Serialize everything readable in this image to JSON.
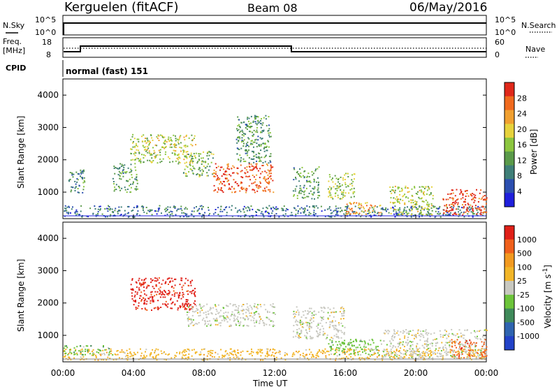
{
  "header": {
    "station": "Kerguelen (fitACF)",
    "beam": "Beam 08",
    "date": "06/May/2016"
  },
  "top_panels": {
    "nsky": {
      "label": "N.Sky",
      "ticks": [
        "10^5",
        "10^0"
      ],
      "right_label": "N.Search",
      "right_ticks": [
        "10^5",
        "10^0"
      ]
    },
    "freq": {
      "label_lines": [
        "Freq.",
        "[MHz]"
      ],
      "ticks": [
        "18",
        "8"
      ],
      "right_label": "Nave",
      "right_ticks": [
        "60",
        "0"
      ]
    },
    "cpid": {
      "label": "CPID",
      "text": "normal (fast) 151"
    }
  },
  "chart_data": [
    {
      "type": "heatmap",
      "name": "power",
      "ylabel": "Slant Range [km]",
      "xlabel": "",
      "yticks": [
        "4000",
        "3000",
        "2000",
        "1000"
      ],
      "ylim": [
        180,
        4500
      ],
      "xlim": [
        0,
        24
      ],
      "colorbar": {
        "label": "Power [dB]",
        "ticks": [
          "28",
          "24",
          "20",
          "16",
          "12",
          "8",
          "4"
        ],
        "colors": [
          "#1f1fdc",
          "#2c4fb0",
          "#3f7f78",
          "#5a9a4a",
          "#8cc63f",
          "#e6d23c",
          "#f0a030",
          "#f06a1e",
          "#e0281a"
        ]
      },
      "scatter_regions": [
        {
          "t0": 0.0,
          "t1": 24.0,
          "r0": 250,
          "r1": 600,
          "level": 0.22
        },
        {
          "t0": 0.3,
          "t1": 1.2,
          "r0": 1000,
          "r1": 1700,
          "level": 0.3
        },
        {
          "t0": 2.8,
          "t1": 4.2,
          "r0": 1000,
          "r1": 1900,
          "level": 0.35
        },
        {
          "t0": 3.8,
          "t1": 7.5,
          "r0": 1900,
          "r1": 2800,
          "level": 0.55
        },
        {
          "t0": 6.8,
          "t1": 8.5,
          "r0": 1500,
          "r1": 2300,
          "level": 0.45
        },
        {
          "t0": 8.5,
          "t1": 11.9,
          "r0": 1000,
          "r1": 1900,
          "level": 0.92
        },
        {
          "t0": 9.8,
          "t1": 11.8,
          "r0": 1900,
          "r1": 3400,
          "level": 0.35
        },
        {
          "t0": 13.0,
          "t1": 14.5,
          "r0": 800,
          "r1": 1800,
          "level": 0.35
        },
        {
          "t0": 15.0,
          "t1": 16.5,
          "r0": 800,
          "r1": 1600,
          "level": 0.5
        },
        {
          "t0": 16.0,
          "t1": 18.0,
          "r0": 300,
          "r1": 700,
          "level": 0.75
        },
        {
          "t0": 18.5,
          "t1": 21.0,
          "r0": 300,
          "r1": 1200,
          "level": 0.55
        },
        {
          "t0": 21.5,
          "t1": 24.0,
          "r0": 300,
          "r1": 1100,
          "level": 0.95
        }
      ]
    },
    {
      "type": "heatmap",
      "name": "velocity",
      "ylabel": "Slant Range [km]",
      "xlabel": "Time UT",
      "yticks": [
        "4000",
        "3000",
        "2000",
        "1000"
      ],
      "xticks": [
        "00:00",
        "04:00",
        "08:00",
        "12:00",
        "16:00",
        "20:00",
        "00:00"
      ],
      "ylim": [
        180,
        4500
      ],
      "xlim": [
        0,
        24
      ],
      "colorbar": {
        "label_main": "Velocity [m s",
        "label_sup": "-1",
        "label_end": "]",
        "ticks": [
          "1000",
          "500",
          "100",
          "25",
          "-25",
          "-100",
          "-500",
          "-1000"
        ],
        "colors": [
          "#2242c8",
          "#2f64b0",
          "#3f8a5a",
          "#6cc43a",
          "#c8c8c0",
          "#f2b628",
          "#f29a20",
          "#f0601c",
          "#e02018"
        ]
      },
      "scatter_regions": [
        {
          "t0": 0.0,
          "t1": 24.0,
          "r0": 250,
          "r1": 600,
          "color_index": 5
        },
        {
          "t0": 0.0,
          "t1": 2.8,
          "r0": 400,
          "r1": 700,
          "color_index": 3
        },
        {
          "t0": 3.8,
          "t1": 7.5,
          "r0": 1800,
          "r1": 2800,
          "color_index": 8
        },
        {
          "t0": 7.0,
          "t1": 12.0,
          "r0": 1300,
          "r1": 2000,
          "color_index": 4
        },
        {
          "t0": 13.0,
          "t1": 16.0,
          "r0": 900,
          "r1": 1900,
          "color_index": 4
        },
        {
          "t0": 15.0,
          "t1": 18.0,
          "r0": 400,
          "r1": 900,
          "color_index": 3
        },
        {
          "t0": 18.0,
          "t1": 24.0,
          "r0": 300,
          "r1": 1200,
          "color_index": 4
        },
        {
          "t0": 22.0,
          "t1": 24.0,
          "r0": 300,
          "r1": 900,
          "color_index": 7
        }
      ]
    }
  ]
}
